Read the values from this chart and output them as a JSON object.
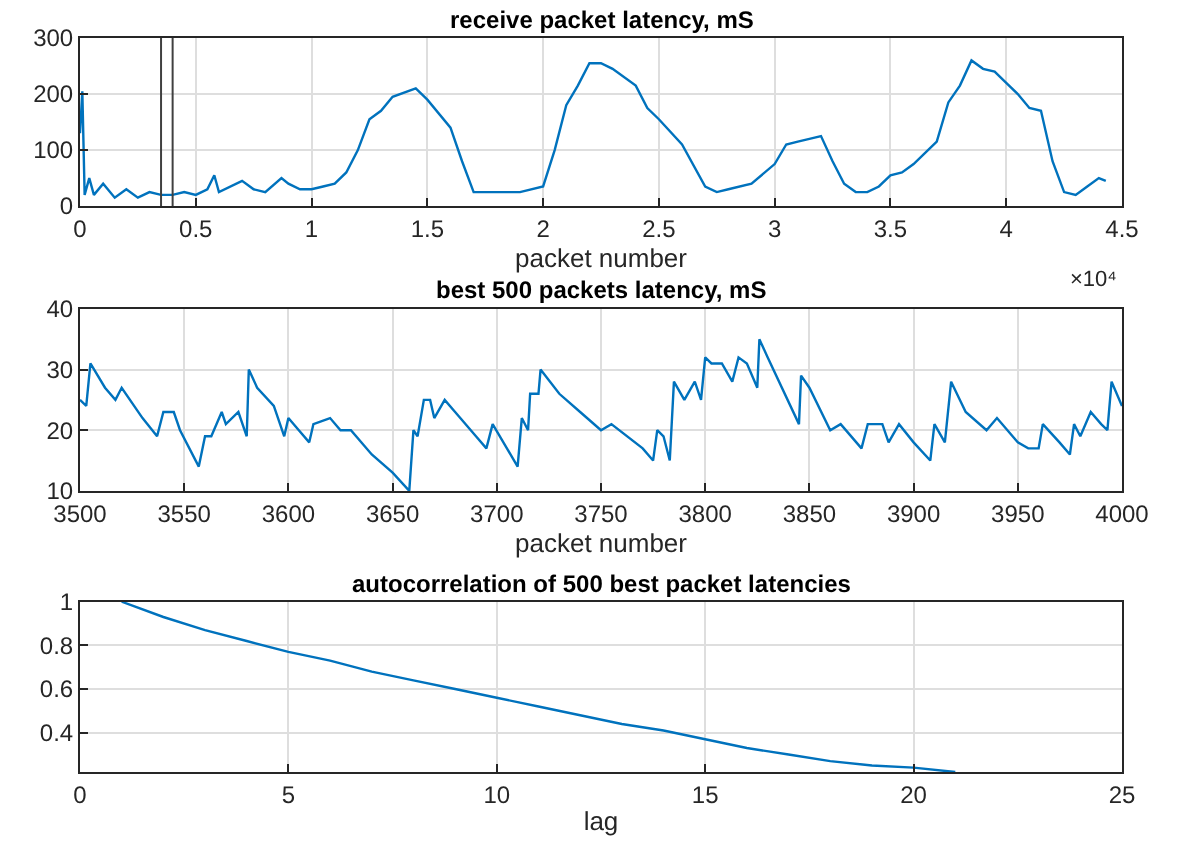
{
  "chart_data": [
    {
      "type": "line",
      "title": "receive packet latency, mS",
      "xlabel": "packet number",
      "x": [
        0,
        0.01,
        0.02,
        0.04,
        0.06,
        0.1,
        0.15,
        0.2,
        0.25,
        0.3,
        0.35,
        0.4,
        0.45,
        0.5,
        0.55,
        0.58,
        0.6,
        0.7,
        0.75,
        0.8,
        0.87,
        0.9,
        0.95,
        1.0,
        1.05,
        1.1,
        1.15,
        1.2,
        1.25,
        1.3,
        1.35,
        1.45,
        1.5,
        1.6,
        1.65,
        1.7,
        1.75,
        1.8,
        1.9,
        2.0,
        2.05,
        2.1,
        2.15,
        2.2,
        2.25,
        2.3,
        2.4,
        2.45,
        2.5,
        2.6,
        2.7,
        2.75,
        2.8,
        2.9,
        3.0,
        3.05,
        3.1,
        3.15,
        3.2,
        3.25,
        3.3,
        3.35,
        3.4,
        3.45,
        3.5,
        3.55,
        3.6,
        3.7,
        3.75,
        3.8,
        3.85,
        3.9,
        3.95,
        4.0,
        4.05,
        4.1,
        4.15,
        4.2,
        4.25,
        4.3,
        4.35,
        4.4,
        4.43
      ],
      "series": [
        {
          "color": "#0072bd",
          "values": [
            130,
            205,
            20,
            50,
            20,
            40,
            15,
            30,
            15,
            25,
            20,
            20,
            25,
            20,
            30,
            55,
            25,
            45,
            30,
            25,
            50,
            40,
            30,
            30,
            35,
            40,
            60,
            100,
            155,
            170,
            195,
            210,
            190,
            140,
            80,
            25,
            25,
            25,
            25,
            35,
            100,
            180,
            215,
            255,
            255,
            245,
            215,
            175,
            155,
            110,
            35,
            25,
            30,
            40,
            75,
            110,
            115,
            120,
            125,
            80,
            40,
            25,
            25,
            35,
            55,
            60,
            75,
            115,
            185,
            215,
            260,
            245,
            240,
            220,
            200,
            175,
            170,
            80,
            25,
            20,
            35,
            50,
            45
          ]
        }
      ],
      "xlim": [
        0,
        4.5
      ],
      "ylim": [
        0,
        300
      ],
      "xticks": [
        0,
        0.5,
        1,
        1.5,
        2,
        2.5,
        3,
        3.5,
        4,
        4.5
      ],
      "yticks": [
        0,
        100,
        200,
        300
      ],
      "ref_lines": [
        {
          "axis": "x",
          "value": 0.35,
          "color": "#404040"
        },
        {
          "axis": "x",
          "value": 0.4,
          "color": "#404040"
        }
      ],
      "annotations": [
        "×10⁴"
      ],
      "grid": true
    },
    {
      "type": "line",
      "title": "best 500 packets latency, mS",
      "xlabel": "packet number",
      "x": [
        3500,
        3503,
        3505,
        3512,
        3517,
        3520,
        3530,
        3537,
        3540,
        3545,
        3548,
        3557,
        3560,
        3563,
        3568,
        3570,
        3576,
        3580,
        3581,
        3585,
        3593,
        3598,
        3600,
        3605,
        3610,
        3612,
        3620,
        3625,
        3630,
        3640,
        3650,
        3658,
        3660,
        3662,
        3665,
        3668,
        3670,
        3675,
        3680,
        3690,
        3695,
        3698,
        3710,
        3712,
        3715,
        3716,
        3720,
        3721,
        3730,
        3740,
        3750,
        3755,
        3770,
        3775,
        3777,
        3780,
        3783,
        3785,
        3790,
        3795,
        3798,
        3800,
        3803,
        3808,
        3813,
        3816,
        3820,
        3825,
        3826,
        3830,
        3845,
        3846,
        3850,
        3860,
        3865,
        3875,
        3878,
        3885,
        3888,
        3893,
        3900,
        3908,
        3910,
        3915,
        3918,
        3925,
        3935,
        3940,
        3950,
        3955,
        3960,
        3962,
        3970,
        3975,
        3977,
        3980,
        3985,
        3990,
        3993,
        3995,
        4000
      ],
      "series": [
        {
          "color": "#0072bd",
          "values": [
            25,
            24,
            31,
            27,
            25,
            27,
            22,
            19,
            23,
            23,
            20,
            14,
            19,
            19,
            23,
            21,
            23,
            19,
            30,
            27,
            24,
            19,
            22,
            20,
            18,
            21,
            22,
            20,
            20,
            16,
            13,
            10,
            20,
            19,
            25,
            25,
            22,
            25,
            23,
            19,
            17,
            21,
            14,
            22,
            20,
            26,
            26,
            30,
            26,
            23,
            20,
            21,
            17,
            15,
            20,
            19,
            15,
            28,
            25,
            28,
            25,
            32,
            31,
            31,
            28,
            32,
            31,
            27,
            35,
            32,
            21,
            29,
            27,
            20,
            21,
            17,
            21,
            21,
            18,
            21,
            18,
            15,
            21,
            18,
            28,
            23,
            20,
            22,
            18,
            17,
            17,
            21,
            18,
            16,
            21,
            19,
            23,
            21,
            20,
            28,
            24
          ]
        }
      ],
      "xlim": [
        3500,
        4000
      ],
      "ylim": [
        10,
        40
      ],
      "xticks": [
        3500,
        3550,
        3600,
        3650,
        3700,
        3750,
        3800,
        3850,
        3900,
        3950,
        4000
      ],
      "yticks": [
        10,
        20,
        30,
        40
      ],
      "grid": true
    },
    {
      "type": "line",
      "title": "autocorrelation of 500 best packet latencies",
      "xlabel": "lag",
      "x": [
        1,
        2,
        3,
        4,
        5,
        6,
        7,
        8,
        9,
        10,
        11,
        12,
        13,
        14,
        15,
        16,
        17,
        18,
        19,
        20,
        21
      ],
      "series": [
        {
          "color": "#0072bd",
          "values": [
            1.0,
            0.93,
            0.87,
            0.82,
            0.77,
            0.73,
            0.68,
            0.64,
            0.6,
            0.56,
            0.52,
            0.48,
            0.44,
            0.41,
            0.37,
            0.33,
            0.3,
            0.27,
            0.25,
            0.24,
            0.22
          ]
        }
      ],
      "xlim": [
        0,
        25
      ],
      "ylim": [
        0.22,
        1
      ],
      "xticks": [
        0,
        5,
        10,
        15,
        20,
        25
      ],
      "yticks": [
        {
          "value": 0.4,
          "label": "0.4"
        },
        {
          "value": 0.6,
          "label": "0.6"
        },
        {
          "value": 0.8,
          "label": "0.8"
        },
        {
          "value": 1,
          "label": "1"
        }
      ],
      "grid": true
    }
  ]
}
